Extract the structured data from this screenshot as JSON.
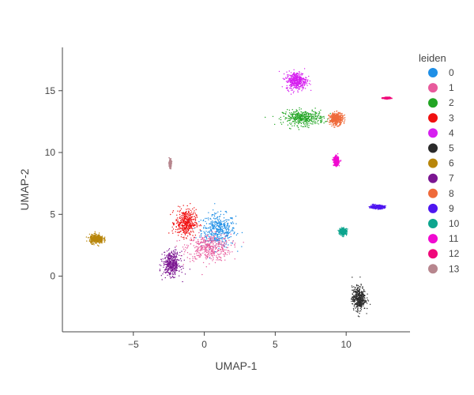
{
  "chart_data": {
    "type": "scatter",
    "xlabel": "UMAP-1",
    "ylabel": "UMAP-2",
    "xlim": [
      -10,
      14.5
    ],
    "ylim": [
      -4.5,
      18.5
    ],
    "xticks": [
      -5,
      0,
      5,
      10
    ],
    "yticks": [
      0,
      5,
      10,
      15
    ],
    "xtick_labels": [
      "−5",
      "0",
      "5",
      "10"
    ],
    "ytick_labels": [
      "0",
      "5",
      "10",
      "15"
    ],
    "legend_title": "leiden",
    "legend_position": "right",
    "series": [
      {
        "name": "0",
        "color": "#1f8fe6",
        "centroid": [
          1.0,
          3.7
        ],
        "spread": [
          1.0,
          1.1
        ]
      },
      {
        "name": "1",
        "color": "#e85a9c",
        "centroid": [
          0.3,
          2.3
        ],
        "spread": [
          1.3,
          0.9
        ]
      },
      {
        "name": "2",
        "color": "#22a524",
        "centroid": [
          7.0,
          12.8
        ],
        "spread": [
          1.2,
          0.5
        ]
      },
      {
        "name": "3",
        "color": "#f01010",
        "centroid": [
          -1.3,
          4.3
        ],
        "spread": [
          0.6,
          0.9
        ]
      },
      {
        "name": "4",
        "color": "#d61ff0",
        "centroid": [
          6.5,
          15.8
        ],
        "spread": [
          0.6,
          0.6
        ]
      },
      {
        "name": "5",
        "color": "#2a2a2a",
        "centroid": [
          10.9,
          -1.8
        ],
        "spread": [
          0.4,
          0.8
        ]
      },
      {
        "name": "6",
        "color": "#b8860b",
        "centroid": [
          -7.6,
          3.0
        ],
        "spread": [
          0.4,
          0.3
        ]
      },
      {
        "name": "7",
        "color": "#7b1591",
        "centroid": [
          -2.3,
          1.0
        ],
        "spread": [
          0.5,
          0.8
        ]
      },
      {
        "name": "8",
        "color": "#ef6a3a",
        "centroid": [
          9.3,
          12.7
        ],
        "spread": [
          0.4,
          0.4
        ]
      },
      {
        "name": "9",
        "color": "#4e16f0",
        "centroid": [
          12.2,
          5.6
        ],
        "spread": [
          0.4,
          0.12
        ]
      },
      {
        "name": "10",
        "color": "#0da58e",
        "centroid": [
          9.8,
          3.6
        ],
        "spread": [
          0.2,
          0.2
        ]
      },
      {
        "name": "11",
        "color": "#f00ad0",
        "centroid": [
          9.3,
          9.3
        ],
        "spread": [
          0.15,
          0.3
        ]
      },
      {
        "name": "12",
        "color": "#f0087a",
        "centroid": [
          12.9,
          14.4
        ],
        "spread": [
          0.2,
          0.05
        ]
      },
      {
        "name": "13",
        "color": "#b7868e",
        "centroid": [
          -2.4,
          9.1
        ],
        "spread": [
          0.06,
          0.25
        ]
      }
    ]
  }
}
